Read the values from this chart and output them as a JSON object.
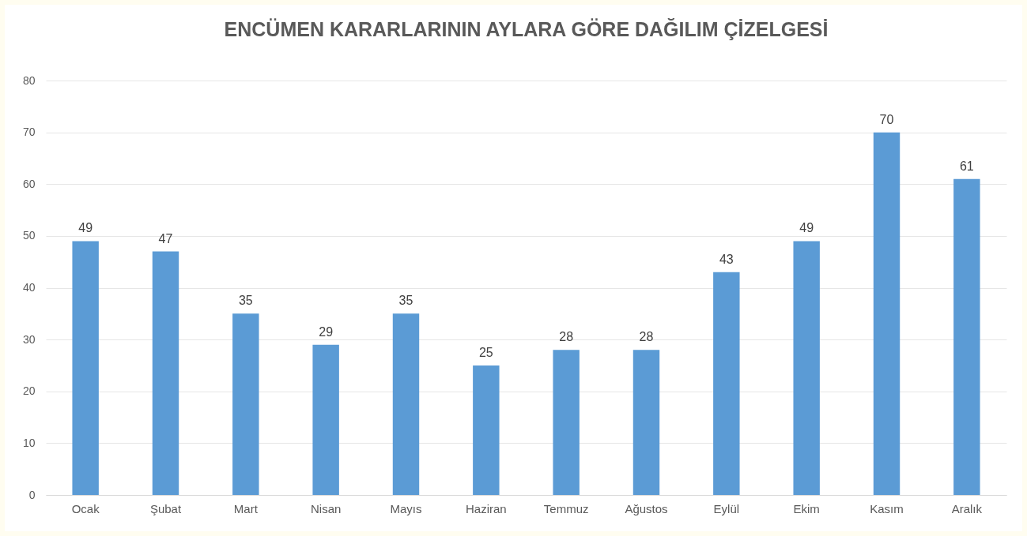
{
  "chart_data": {
    "type": "bar",
    "title": "ENCÜMEN KARARLARININ AYLARA GÖRE DAĞILIM ÇİZELGESİ",
    "categories": [
      "Ocak",
      "Şubat",
      "Mart",
      "Nisan",
      "Mayıs",
      "Haziran",
      "Temmuz",
      "Ağustos",
      "Eylül",
      "Ekim",
      "Kasım",
      "Aralık"
    ],
    "values": [
      49,
      47,
      35,
      29,
      35,
      25,
      28,
      28,
      43,
      49,
      70,
      61
    ],
    "color": "#5b9bd5",
    "ylim": [
      0,
      80
    ],
    "yticks": [
      0,
      10,
      20,
      30,
      40,
      50,
      60,
      70,
      80
    ],
    "grid": "y",
    "data_labels": true
  }
}
